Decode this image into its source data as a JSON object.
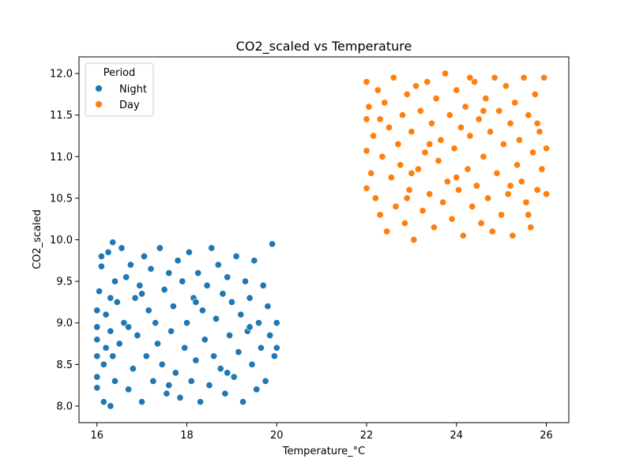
{
  "chart_data": {
    "type": "scatter",
    "title": "CO2_scaled vs Temperature",
    "xlabel": "Temperature_°C",
    "ylabel": "CO2_scaled",
    "xlim": [
      15.6,
      26.5
    ],
    "ylim": [
      7.8,
      12.2
    ],
    "xticks": [
      16,
      18,
      20,
      22,
      24,
      26
    ],
    "yticks": [
      8.0,
      8.5,
      9.0,
      9.5,
      10.0,
      10.5,
      11.0,
      11.5,
      12.0
    ],
    "grid": false,
    "legend": {
      "title": "Period",
      "placement": "top-left"
    },
    "series": [
      {
        "name": "Night",
        "color": "#1f77b4",
        "points": [
          [
            16.0,
            9.15
          ],
          [
            16.0,
            8.95
          ],
          [
            16.0,
            8.8
          ],
          [
            16.0,
            8.6
          ],
          [
            16.0,
            8.35
          ],
          [
            16.0,
            8.22
          ],
          [
            16.05,
            9.38
          ],
          [
            16.1,
            9.68
          ],
          [
            16.1,
            9.8
          ],
          [
            16.15,
            8.5
          ],
          [
            16.15,
            8.05
          ],
          [
            16.2,
            8.7
          ],
          [
            16.2,
            9.1
          ],
          [
            16.25,
            9.85
          ],
          [
            16.3,
            8.0
          ],
          [
            16.3,
            9.3
          ],
          [
            16.3,
            8.9
          ],
          [
            16.35,
            8.6
          ],
          [
            16.35,
            9.97
          ],
          [
            16.4,
            9.5
          ],
          [
            16.4,
            8.3
          ],
          [
            16.45,
            9.25
          ],
          [
            16.5,
            8.75
          ],
          [
            16.55,
            9.9
          ],
          [
            16.6,
            9.0
          ],
          [
            16.65,
            9.55
          ],
          [
            16.7,
            8.2
          ],
          [
            16.75,
            9.7
          ],
          [
            16.8,
            8.45
          ],
          [
            16.85,
            9.3
          ],
          [
            16.9,
            8.85
          ],
          [
            16.95,
            9.45
          ],
          [
            17.0,
            8.05
          ],
          [
            17.05,
            9.8
          ],
          [
            17.1,
            8.6
          ],
          [
            17.15,
            9.15
          ],
          [
            17.2,
            9.65
          ],
          [
            17.25,
            8.3
          ],
          [
            17.3,
            9.0
          ],
          [
            17.35,
            8.75
          ],
          [
            17.4,
            9.9
          ],
          [
            17.45,
            8.5
          ],
          [
            17.5,
            9.4
          ],
          [
            17.55,
            8.15
          ],
          [
            17.6,
            9.6
          ],
          [
            17.65,
            8.9
          ],
          [
            17.7,
            9.2
          ],
          [
            17.75,
            8.4
          ],
          [
            17.8,
            9.75
          ],
          [
            17.85,
            8.1
          ],
          [
            17.9,
            9.5
          ],
          [
            17.95,
            8.7
          ],
          [
            18.0,
            9.0
          ],
          [
            18.05,
            9.85
          ],
          [
            18.1,
            8.3
          ],
          [
            18.15,
            9.3
          ],
          [
            18.2,
            8.55
          ],
          [
            18.25,
            9.6
          ],
          [
            18.3,
            8.05
          ],
          [
            18.35,
            9.15
          ],
          [
            18.4,
            8.8
          ],
          [
            18.45,
            9.45
          ],
          [
            18.5,
            8.25
          ],
          [
            18.55,
            9.9
          ],
          [
            18.6,
            8.6
          ],
          [
            18.65,
            9.05
          ],
          [
            18.7,
            9.7
          ],
          [
            18.75,
            8.45
          ],
          [
            18.8,
            9.35
          ],
          [
            18.85,
            8.15
          ],
          [
            18.9,
            9.55
          ],
          [
            18.95,
            8.85
          ],
          [
            19.0,
            9.25
          ],
          [
            19.05,
            8.35
          ],
          [
            19.1,
            9.8
          ],
          [
            19.15,
            8.65
          ],
          [
            19.2,
            9.1
          ],
          [
            19.25,
            8.05
          ],
          [
            19.3,
            9.5
          ],
          [
            19.35,
            8.9
          ],
          [
            19.4,
            9.3
          ],
          [
            19.45,
            8.5
          ],
          [
            19.5,
            9.75
          ],
          [
            19.55,
            8.2
          ],
          [
            19.6,
            9.0
          ],
          [
            19.65,
            8.7
          ],
          [
            19.7,
            9.45
          ],
          [
            19.75,
            8.3
          ],
          [
            19.8,
            9.2
          ],
          [
            19.85,
            8.85
          ],
          [
            19.9,
            9.95
          ],
          [
            19.95,
            8.6
          ],
          [
            20.0,
            9.0
          ],
          [
            20.0,
            8.7
          ],
          [
            16.7,
            8.95
          ],
          [
            17.0,
            9.35
          ],
          [
            17.6,
            8.25
          ],
          [
            18.2,
            9.25
          ],
          [
            18.9,
            8.4
          ],
          [
            19.4,
            8.95
          ]
        ]
      },
      {
        "name": "Day",
        "color": "#ff7f0e",
        "points": [
          [
            22.0,
            11.9
          ],
          [
            22.0,
            11.45
          ],
          [
            22.0,
            11.07
          ],
          [
            22.0,
            10.62
          ],
          [
            22.05,
            11.6
          ],
          [
            22.1,
            10.8
          ],
          [
            22.15,
            11.25
          ],
          [
            22.2,
            10.5
          ],
          [
            22.25,
            11.8
          ],
          [
            22.3,
            10.3
          ],
          [
            22.35,
            11.0
          ],
          [
            22.4,
            11.65
          ],
          [
            22.45,
            10.1
          ],
          [
            22.5,
            11.35
          ],
          [
            22.55,
            10.75
          ],
          [
            22.6,
            11.95
          ],
          [
            22.65,
            10.4
          ],
          [
            22.7,
            11.15
          ],
          [
            22.75,
            10.9
          ],
          [
            22.8,
            11.5
          ],
          [
            22.85,
            10.2
          ],
          [
            22.9,
            11.75
          ],
          [
            22.95,
            10.6
          ],
          [
            23.0,
            11.3
          ],
          [
            23.05,
            10.0
          ],
          [
            23.1,
            11.85
          ],
          [
            23.15,
            10.85
          ],
          [
            23.2,
            11.55
          ],
          [
            23.25,
            10.35
          ],
          [
            23.3,
            11.05
          ],
          [
            23.35,
            11.9
          ],
          [
            23.4,
            10.55
          ],
          [
            23.45,
            11.4
          ],
          [
            23.5,
            10.15
          ],
          [
            23.55,
            11.7
          ],
          [
            23.6,
            10.95
          ],
          [
            23.65,
            11.2
          ],
          [
            23.7,
            10.45
          ],
          [
            23.75,
            12.0
          ],
          [
            23.8,
            10.7
          ],
          [
            23.85,
            11.5
          ],
          [
            23.9,
            10.25
          ],
          [
            23.95,
            11.1
          ],
          [
            24.0,
            11.8
          ],
          [
            24.05,
            10.6
          ],
          [
            24.1,
            11.35
          ],
          [
            24.15,
            10.05
          ],
          [
            24.2,
            11.6
          ],
          [
            24.25,
            10.85
          ],
          [
            24.3,
            11.25
          ],
          [
            24.35,
            10.4
          ],
          [
            24.4,
            11.9
          ],
          [
            24.45,
            10.65
          ],
          [
            24.5,
            11.45
          ],
          [
            24.55,
            10.2
          ],
          [
            24.6,
            11.0
          ],
          [
            24.65,
            11.7
          ],
          [
            24.7,
            10.5
          ],
          [
            24.75,
            11.3
          ],
          [
            24.8,
            10.1
          ],
          [
            24.85,
            11.95
          ],
          [
            24.9,
            10.8
          ],
          [
            24.95,
            11.55
          ],
          [
            25.0,
            10.3
          ],
          [
            25.05,
            11.15
          ],
          [
            25.1,
            11.85
          ],
          [
            25.15,
            10.55
          ],
          [
            25.2,
            11.4
          ],
          [
            25.25,
            10.05
          ],
          [
            25.3,
            11.65
          ],
          [
            25.35,
            10.9
          ],
          [
            25.4,
            11.2
          ],
          [
            25.45,
            10.7
          ],
          [
            25.5,
            11.95
          ],
          [
            25.55,
            10.45
          ],
          [
            25.6,
            11.5
          ],
          [
            25.65,
            10.15
          ],
          [
            25.7,
            11.05
          ],
          [
            25.75,
            11.75
          ],
          [
            25.8,
            10.6
          ],
          [
            25.85,
            11.3
          ],
          [
            25.9,
            10.85
          ],
          [
            25.95,
            11.95
          ],
          [
            26.0,
            11.1
          ],
          [
            26.0,
            10.55
          ],
          [
            22.3,
            11.45
          ],
          [
            22.9,
            10.5
          ],
          [
            23.4,
            11.15
          ],
          [
            24.0,
            10.75
          ],
          [
            24.6,
            11.55
          ],
          [
            25.2,
            10.65
          ],
          [
            25.8,
            11.4
          ],
          [
            23.0,
            10.8
          ],
          [
            24.3,
            11.95
          ],
          [
            25.6,
            10.3
          ]
        ]
      }
    ]
  }
}
